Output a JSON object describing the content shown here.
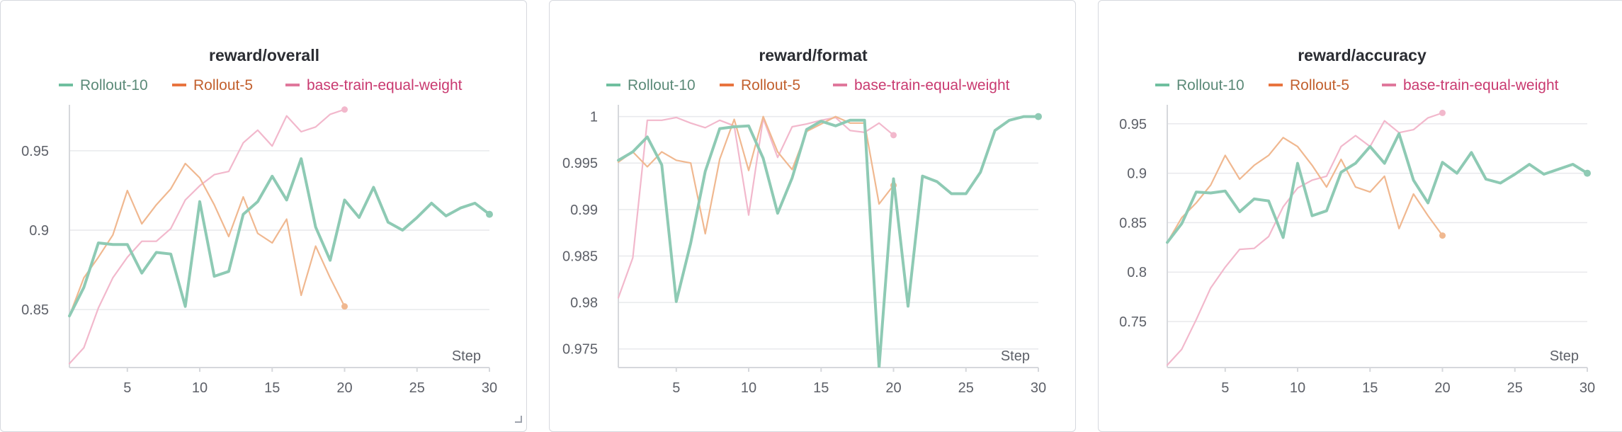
{
  "colors": {
    "rollout10": "#8ecab4",
    "rollout5": "#f0b890",
    "base": "#f2b8cc",
    "legend_rollout10_text": "#5b8a78",
    "legend_rollout5_text": "#c2602e",
    "legend_base_text": "#c93a70",
    "legend_rollout10_swatch": "#6fbf9f",
    "legend_rollout5_swatch": "#e8743f",
    "legend_base_swatch": "#e0789c"
  },
  "legend": [
    {
      "key": "rollout10",
      "label": "Rollout-10"
    },
    {
      "key": "rollout5",
      "label": "Rollout-5"
    },
    {
      "key": "base",
      "label": "base-train-equal-weight"
    }
  ],
  "chart_data": [
    {
      "type": "line",
      "title": "reward/overall",
      "xlabel": "Step",
      "xlim": [
        1,
        30
      ],
      "ylim": [
        0.8135,
        0.9745
      ],
      "xticks": [
        5,
        10,
        15,
        20,
        25,
        30
      ],
      "yticks": [
        0.85,
        0.9,
        0.95
      ],
      "ytick_labels": [
        "0.85",
        "0.9",
        "0.95"
      ],
      "grid": true,
      "series": [
        {
          "name": "Rollout-10",
          "key": "rollout10",
          "x": [
            1,
            2,
            3,
            4,
            5,
            6,
            7,
            8,
            9,
            10,
            11,
            12,
            13,
            14,
            15,
            16,
            17,
            18,
            19,
            20,
            21,
            22,
            23,
            24,
            25,
            26,
            27,
            28,
            29,
            30
          ],
          "y": [
            0.846,
            0.864,
            0.892,
            0.891,
            0.891,
            0.873,
            0.886,
            0.885,
            0.852,
            0.918,
            0.871,
            0.874,
            0.91,
            0.918,
            0.934,
            0.919,
            0.945,
            0.902,
            0.881,
            0.919,
            0.908,
            0.927,
            0.905,
            0.9,
            0.908,
            0.917,
            0.909,
            0.914,
            0.917,
            0.91
          ]
        },
        {
          "name": "Rollout-5",
          "key": "rollout5",
          "x": [
            1,
            2,
            3,
            4,
            5,
            6,
            7,
            8,
            9,
            10,
            11,
            12,
            13,
            14,
            15,
            16,
            17,
            18,
            19,
            20
          ],
          "y": [
            0.846,
            0.87,
            0.883,
            0.897,
            0.925,
            0.904,
            0.916,
            0.926,
            0.942,
            0.933,
            0.916,
            0.896,
            0.921,
            0.898,
            0.892,
            0.907,
            0.859,
            0.89,
            0.87,
            0.852
          ]
        },
        {
          "name": "base-train-equal-weight",
          "key": "base",
          "x": [
            1,
            2,
            3,
            4,
            5,
            6,
            7,
            8,
            9,
            10,
            11,
            12,
            13,
            14,
            15,
            16,
            17,
            18,
            19,
            20
          ],
          "y": [
            0.816,
            0.826,
            0.851,
            0.87,
            0.883,
            0.893,
            0.893,
            0.901,
            0.919,
            0.928,
            0.935,
            0.937,
            0.955,
            0.963,
            0.953,
            0.972,
            0.962,
            0.965,
            0.973,
            0.976
          ]
        }
      ]
    },
    {
      "type": "line",
      "title": "reward/format",
      "xlabel": "Step",
      "xlim": [
        1,
        30
      ],
      "ylim": [
        0.973,
        1.0005
      ],
      "xticks": [
        5,
        10,
        15,
        20,
        25,
        30
      ],
      "yticks": [
        0.975,
        0.98,
        0.985,
        0.99,
        0.995,
        1.0
      ],
      "ytick_labels": [
        "0.975",
        "0.98",
        "0.985",
        "0.99",
        "0.995",
        "1"
      ],
      "grid": true,
      "series": [
        {
          "name": "Rollout-10",
          "key": "rollout10",
          "x": [
            1,
            2,
            3,
            4,
            5,
            6,
            7,
            8,
            9,
            10,
            11,
            12,
            13,
            14,
            15,
            16,
            17,
            18,
            19,
            20,
            21,
            22,
            23,
            24,
            25,
            26,
            27,
            28,
            29,
            30
          ],
          "y": [
            0.9953,
            0.9962,
            0.9978,
            0.9948,
            0.9801,
            0.9864,
            0.9941,
            0.9987,
            0.9989,
            0.999,
            0.9955,
            0.9896,
            0.9934,
            0.9986,
            0.9995,
            0.999,
            0.9996,
            0.9996,
            0.973,
            0.9933,
            0.9796,
            0.9936,
            0.993,
            0.9917,
            0.9917,
            0.994,
            0.9985,
            0.9996,
            1.0,
            1.0
          ]
        },
        {
          "name": "Rollout-5",
          "key": "rollout5",
          "x": [
            1,
            2,
            3,
            4,
            5,
            6,
            7,
            8,
            9,
            10,
            11,
            12,
            13,
            14,
            15,
            16,
            17,
            18,
            19,
            20
          ],
          "y": [
            0.9951,
            0.9962,
            0.9946,
            0.9962,
            0.9953,
            0.995,
            0.9874,
            0.9954,
            0.9997,
            0.9942,
            1.0,
            0.9962,
            0.9943,
            0.9984,
            0.9992,
            1.0,
            0.9993,
            0.9993,
            0.9906,
            0.9926
          ]
        },
        {
          "name": "base-train-equal-weight",
          "key": "base",
          "x": [
            1,
            2,
            3,
            4,
            5,
            6,
            7,
            8,
            9,
            10,
            11,
            12,
            13,
            14,
            15,
            16,
            17,
            18,
            19,
            20
          ],
          "y": [
            0.9805,
            0.9848,
            0.9996,
            0.9996,
            0.9999,
            0.9993,
            0.9988,
            0.9996,
            0.999,
            0.9894,
            0.9998,
            0.9956,
            0.9989,
            0.9992,
            0.9996,
            0.9999,
            0.9985,
            0.9983,
            0.9993,
            0.998
          ]
        }
      ]
    },
    {
      "type": "line",
      "title": "reward/accuracy",
      "xlabel": "Step",
      "xlim": [
        1,
        30
      ],
      "ylim": [
        0.7035,
        0.962
      ],
      "xticks": [
        5,
        10,
        15,
        20,
        25,
        30
      ],
      "yticks": [
        0.75,
        0.8,
        0.85,
        0.9,
        0.95
      ],
      "ytick_labels": [
        "0.75",
        "0.8",
        "0.85",
        "0.9",
        "0.95"
      ],
      "grid": true,
      "series": [
        {
          "name": "Rollout-10",
          "key": "rollout10",
          "x": [
            1,
            2,
            3,
            4,
            5,
            6,
            7,
            8,
            9,
            10,
            11,
            12,
            13,
            14,
            15,
            16,
            17,
            18,
            19,
            20,
            21,
            22,
            23,
            24,
            25,
            26,
            27,
            28,
            29,
            30
          ],
          "y": [
            0.83,
            0.849,
            0.881,
            0.88,
            0.882,
            0.861,
            0.874,
            0.872,
            0.835,
            0.91,
            0.857,
            0.862,
            0.901,
            0.91,
            0.927,
            0.91,
            0.94,
            0.893,
            0.87,
            0.911,
            0.9,
            0.921,
            0.894,
            0.89,
            0.899,
            0.909,
            0.899,
            0.904,
            0.909,
            0.9
          ]
        },
        {
          "name": "Rollout-5",
          "key": "rollout5",
          "x": [
            1,
            2,
            3,
            4,
            5,
            6,
            7,
            8,
            9,
            10,
            11,
            12,
            13,
            14,
            15,
            16,
            17,
            18,
            19,
            20
          ],
          "y": [
            0.83,
            0.855,
            0.87,
            0.888,
            0.918,
            0.894,
            0.908,
            0.918,
            0.936,
            0.927,
            0.908,
            0.886,
            0.914,
            0.886,
            0.881,
            0.897,
            0.844,
            0.879,
            0.857,
            0.837
          ]
        },
        {
          "name": "base-train-equal-weight",
          "key": "base",
          "x": [
            1,
            2,
            3,
            4,
            5,
            6,
            7,
            8,
            9,
            10,
            11,
            12,
            13,
            14,
            15,
            16,
            17,
            18,
            19,
            20
          ],
          "y": [
            0.706,
            0.722,
            0.752,
            0.784,
            0.805,
            0.823,
            0.824,
            0.836,
            0.866,
            0.885,
            0.893,
            0.897,
            0.927,
            0.938,
            0.927,
            0.953,
            0.941,
            0.944,
            0.956,
            0.961
          ]
        }
      ]
    }
  ]
}
